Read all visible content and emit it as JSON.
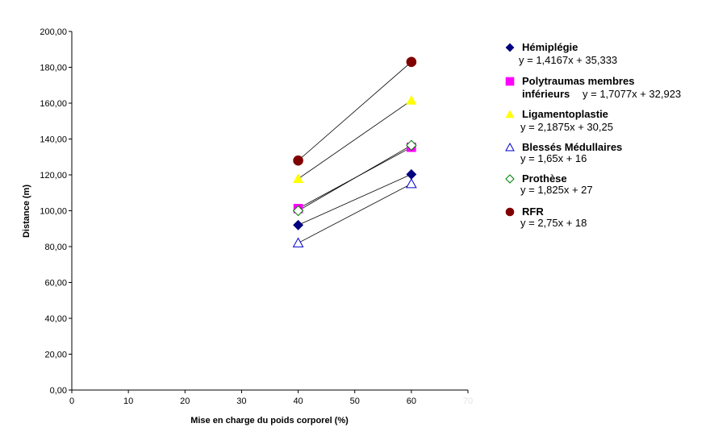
{
  "chart_data": {
    "type": "scatter",
    "title": "",
    "xlabel": "Mise en charge du poids corporel (%)",
    "ylabel": "Distance (m)",
    "xlim": [
      0,
      70
    ],
    "ylim": [
      0,
      200
    ],
    "xticks": [
      "0",
      "10",
      "20",
      "30",
      "40",
      "50",
      "60",
      "70"
    ],
    "yticks": [
      "0,00",
      "20,00",
      "40,00",
      "60,00",
      "80,00",
      "100,00",
      "120,00",
      "140,00",
      "160,00",
      "180,00",
      "200,00"
    ],
    "grid": false,
    "legend_position": "right",
    "series": [
      {
        "name": "Hémiplégie",
        "trendline": "y = 1,4167x + 35,333",
        "marker": "diamond",
        "filled": true,
        "color": "#000080",
        "x": [
          40,
          60
        ],
        "y": [
          92,
          120.3
        ]
      },
      {
        "name": "Polytraumas membres inférieurs",
        "name_lines": [
          "Polytraumas membres",
          "inférieurs"
        ],
        "trendline": "y = 1,7077x + 32,923",
        "marker": "square",
        "filled": true,
        "color": "#FF00FF",
        "x": [
          40,
          60
        ],
        "y": [
          101.2,
          135.4
        ]
      },
      {
        "name": "Ligamentoplastie",
        "trendline": "y = 2,1875x + 30,25",
        "marker": "triangle",
        "filled": true,
        "color": "#FFFF00",
        "x": [
          40,
          60
        ],
        "y": [
          117.8,
          161.5
        ]
      },
      {
        "name": "Blessés Médullaires",
        "trendline": "y = 1,65x + 16",
        "marker": "triangle",
        "filled": false,
        "color": "#0000CC",
        "x": [
          40,
          60
        ],
        "y": [
          82,
          115
        ]
      },
      {
        "name": "Prothèse",
        "trendline": "y = 1,825x + 27",
        "marker": "diamond",
        "filled": false,
        "color": "#008000",
        "x": [
          40,
          60
        ],
        "y": [
          100,
          136.5
        ]
      },
      {
        "name": "RFR",
        "trendline": "y = 2,75x + 18",
        "marker": "circle",
        "filled": true,
        "color": "#800000",
        "x": [
          40,
          60
        ],
        "y": [
          128,
          183
        ]
      }
    ]
  }
}
